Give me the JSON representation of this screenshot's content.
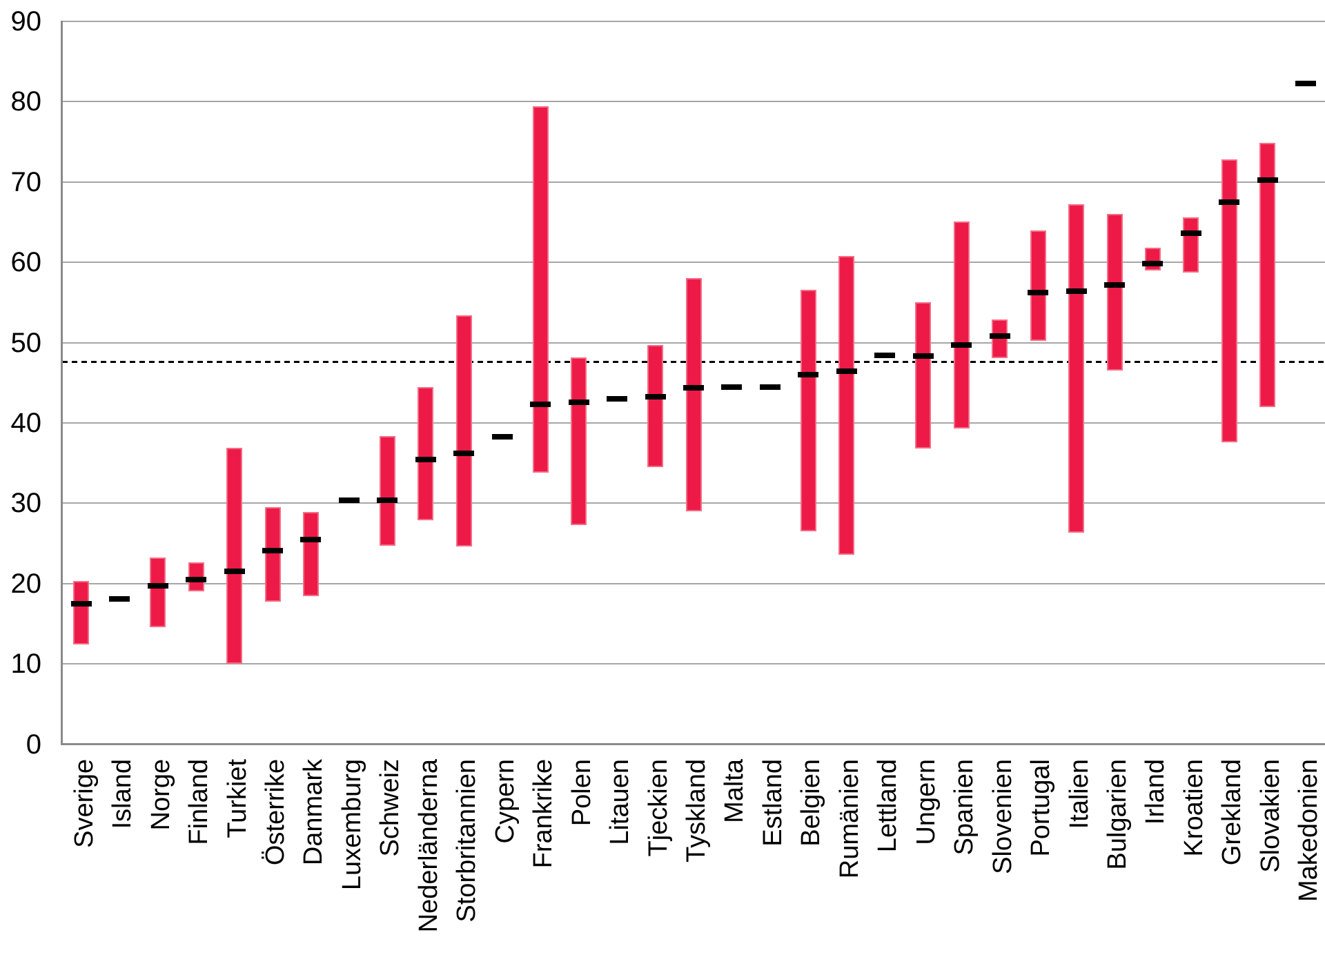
{
  "chart_data": {
    "type": "bar",
    "subtype": "floating-range-bar-with-point-markers",
    "title": "",
    "xlabel": "",
    "ylabel": "",
    "categories": [
      "Sverige",
      "Island",
      "Norge",
      "Finland",
      "Turkiet",
      "Österrike",
      "Danmark",
      "Luxemburg",
      "Schweiz",
      "Nederländerna",
      "Storbritannien",
      "Cypern",
      "Frankrike",
      "Polen",
      "Litauen",
      "Tjeckien",
      "Tyskland",
      "Malta",
      "Estland",
      "Belgien",
      "Rumänien",
      "Lettland",
      "Ungern",
      "Spanien",
      "Slovenien",
      "Portugal",
      "Italien",
      "Bulgarien",
      "Irland",
      "Kroatien",
      "Grekland",
      "Slovakien",
      "Makedonien"
    ],
    "series": [
      {
        "name": "range-low",
        "values": [
          12.4,
          null,
          14.6,
          19.0,
          10.0,
          17.7,
          18.4,
          null,
          24.7,
          27.9,
          24.6,
          null,
          33.8,
          27.3,
          null,
          34.5,
          29.0,
          null,
          null,
          26.5,
          23.6,
          null,
          36.8,
          39.3,
          48.1,
          50.2,
          26.3,
          46.5,
          59.0,
          58.7,
          37.6,
          42.0,
          null
        ]
      },
      {
        "name": "range-high",
        "values": [
          20.3,
          null,
          23.2,
          22.6,
          36.9,
          29.5,
          28.9,
          null,
          38.4,
          44.5,
          53.4,
          null,
          79.4,
          48.2,
          null,
          49.7,
          58.0,
          null,
          null,
          56.6,
          60.8,
          null,
          55.0,
          65.1,
          52.9,
          64.0,
          67.2,
          66.0,
          61.8,
          65.6,
          72.8,
          74.9,
          null
        ]
      },
      {
        "name": "point-value",
        "values": [
          17.5,
          18.1,
          19.7,
          20.5,
          21.5,
          24.1,
          25.5,
          30.4,
          30.4,
          35.4,
          36.2,
          38.3,
          42.3,
          42.6,
          43.0,
          43.3,
          44.4,
          44.5,
          44.5,
          46.0,
          46.4,
          48.4,
          48.3,
          49.7,
          50.8,
          56.2,
          56.4,
          57.2,
          59.8,
          63.6,
          67.5,
          70.2,
          82.3
        ]
      }
    ],
    "reference_line_value": 47.6,
    "y_axis": {
      "min": 0,
      "max": 90,
      "step": 10,
      "tick_labels": [
        "0",
        "10",
        "20",
        "30",
        "40",
        "50",
        "60",
        "70",
        "80",
        "90"
      ]
    },
    "grid": "horizontal",
    "legend": "none",
    "colors": {
      "bar_fill": "#ED1A47",
      "bar_border": "#F46C85",
      "point_dash": "#000000",
      "gridline": "#A6A6A6",
      "axis": "#8A8A8A",
      "reference_line": "#000000",
      "background": "#FFFFFF",
      "text": "#000000"
    }
  }
}
